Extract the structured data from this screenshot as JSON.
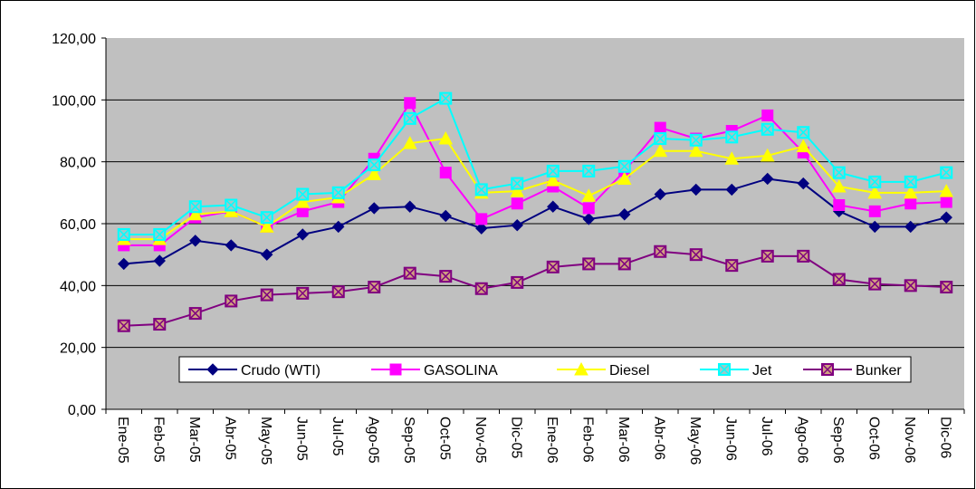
{
  "chart_data": {
    "type": "line",
    "categories": [
      "Ene-05",
      "Feb-05",
      "Mar-05",
      "Abr-05",
      "May-05",
      "Jun-05",
      "Jul-05",
      "Ago-05",
      "Sep-05",
      "Oct-05",
      "Nov-05",
      "Dic-05",
      "Ene-06",
      "Feb-06",
      "Mar-06",
      "Abr-06",
      "May-06",
      "Jun-06",
      "Jul-06",
      "Ago-06",
      "Sep-06",
      "Oct-06",
      "Nov-06",
      "Dic-06"
    ],
    "series": [
      {
        "name": "Crudo (WTI)",
        "color": "#000080",
        "marker": "diamond",
        "values": [
          47,
          48,
          54.5,
          53,
          50,
          56.5,
          59,
          65,
          65.5,
          62.5,
          58.5,
          59.5,
          65.5,
          61.5,
          63,
          69.5,
          71,
          71,
          74.5,
          73,
          64,
          59,
          59,
          62
        ]
      },
      {
        "name": "GASOLINA",
        "color": "#ff00ff",
        "marker": "square",
        "values": [
          53,
          53,
          62,
          64,
          59,
          64,
          67,
          81,
          99,
          76.5,
          61.5,
          66.5,
          72,
          65,
          77,
          91,
          87.5,
          90,
          95,
          83,
          66,
          64,
          66.5,
          67
        ]
      },
      {
        "name": "Diesel",
        "color": "#ffff00",
        "marker": "triangle",
        "values": [
          55,
          55,
          63,
          64,
          59,
          67,
          68.5,
          76,
          86,
          87.5,
          70,
          70.5,
          74,
          69,
          74.5,
          83.5,
          83.5,
          81,
          82,
          85,
          72,
          70,
          70,
          70.5
        ]
      },
      {
        "name": "Jet",
        "color": "#00ffff",
        "marker": "xsquare",
        "values": [
          56.5,
          56.5,
          65.5,
          66,
          62,
          69.5,
          70,
          79,
          94,
          100.5,
          71,
          73,
          77,
          77,
          78.5,
          87.5,
          87,
          88,
          90.5,
          89.5,
          76.5,
          73.5,
          73.5,
          76.5
        ]
      },
      {
        "name": "Bunker",
        "color": "#800080",
        "marker": "xsquare",
        "values": [
          27,
          27.5,
          31,
          35,
          37,
          37.5,
          38,
          39.5,
          44,
          43,
          39,
          41,
          46,
          47,
          47,
          51,
          50,
          46.5,
          49.5,
          49.5,
          42,
          40.5,
          40,
          39.5
        ]
      }
    ],
    "ylim": [
      0,
      120
    ],
    "yticks": [
      {
        "value": 0,
        "label": "0,00"
      },
      {
        "value": 20,
        "label": "20,00"
      },
      {
        "value": 40,
        "label": "40,00"
      },
      {
        "value": 60,
        "label": "60,00"
      },
      {
        "value": 80,
        "label": "80,00"
      },
      {
        "value": 100,
        "label": "100,00"
      },
      {
        "value": 120,
        "label": "120,00"
      }
    ],
    "grid": true
  }
}
